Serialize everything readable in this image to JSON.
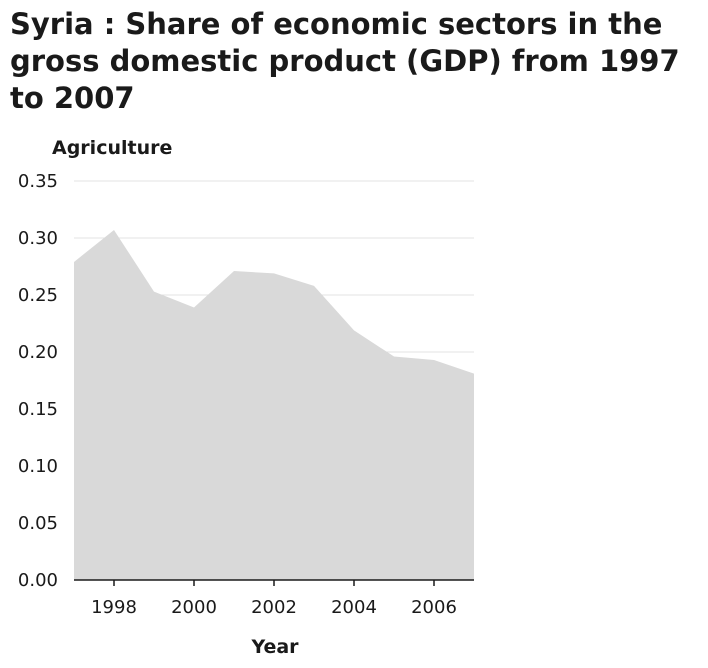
{
  "chart_data": {
    "type": "area",
    "title": "Syria : Share of economic sectors in the gross domestic product (GDP) from 1997 to 2007",
    "xlabel": "Year",
    "ylabel": "Agriculture",
    "x": [
      1997,
      1998,
      1999,
      2000,
      2001,
      2002,
      2003,
      2004,
      2005,
      2006,
      2007
    ],
    "series": [
      {
        "values": [
          0.279,
          0.307,
          0.253,
          0.239,
          0.271,
          0.269,
          0.258,
          0.219,
          0.196,
          0.193,
          0.181
        ]
      }
    ],
    "xlim": [
      1997,
      2007
    ],
    "ylim": [
      0,
      0.35
    ],
    "xticks": [
      1998,
      2000,
      2002,
      2004,
      2006
    ],
    "xtick_labels": [
      "1998",
      "2000",
      "2002",
      "2004",
      "2006"
    ],
    "yticks": [
      0,
      0.05,
      0.1,
      0.15,
      0.2,
      0.25,
      0.3,
      0.35
    ],
    "ytick_labels": [
      "0.00",
      "0.05",
      "0.10",
      "0.15",
      "0.20",
      "0.25",
      "0.30",
      "0.35"
    ],
    "grid": true,
    "fill_color": "#d9d9d9",
    "grid_color": "#e3e3e3",
    "axis_color": "#1a1a1a"
  }
}
